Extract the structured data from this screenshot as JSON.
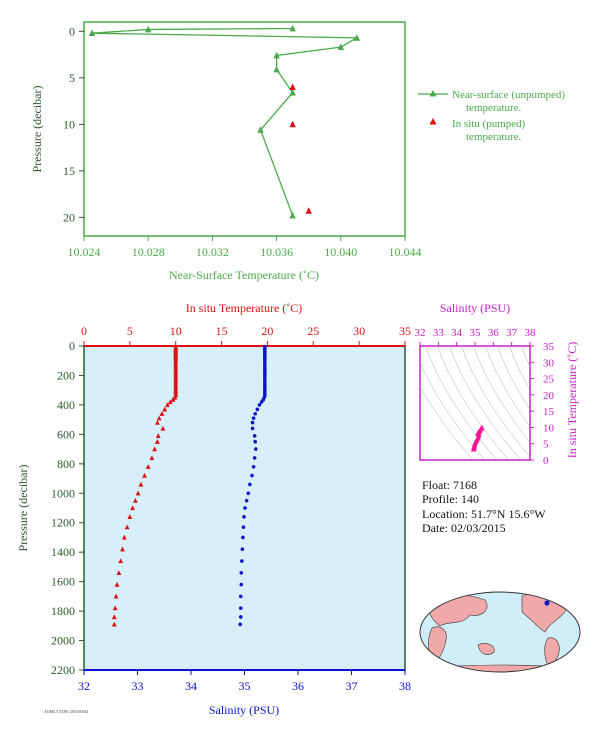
{
  "colors": {
    "green": "#4aaa4a",
    "red": "#dd1111",
    "blue": "#0a16c8",
    "magenta": "#c81ec8",
    "axis_dark": "#2b5a2b",
    "panel_bg": "#d6effa",
    "map_ocean": "#cfeefa",
    "map_land": "#f0a8a8"
  },
  "float_info": {
    "float": "Float:  7168",
    "profile": "Profile:  140",
    "location": "Location:  51.7°N  15.6°W",
    "date": "Date:  02/03/2015"
  },
  "footer_code": "AOML/CTD01 2015/03/02",
  "chart_data": [
    {
      "id": "near_surface",
      "type": "line",
      "xlabel": "Near-Surface Temperature (˚C)",
      "ylabel": "Pressure (decibar)",
      "xlim": [
        10.024,
        10.044
      ],
      "ylim": [
        22,
        -1
      ],
      "xticks": [
        "10.024",
        "10.028",
        "10.032",
        "10.036",
        "10.040",
        "10.044"
      ],
      "yticks": [
        "0",
        "5",
        "10",
        "15",
        "20"
      ],
      "series": [
        {
          "name": "Near-surface (unpumped) temperature.",
          "style": "line-triangle",
          "points": [
            [
              10.037,
              -0.3
            ],
            [
              10.028,
              -0.2
            ],
            [
              10.0245,
              0.2
            ],
            [
              10.041,
              0.7
            ],
            [
              10.04,
              1.7
            ],
            [
              10.036,
              2.6
            ],
            [
              10.036,
              4.1
            ],
            [
              10.037,
              6.6
            ],
            [
              10.035,
              10.6
            ],
            [
              10.037,
              19.8
            ]
          ]
        },
        {
          "name": "In situ (pumped) temperature.",
          "style": "triangle",
          "points": [
            [
              10.037,
              6.0
            ],
            [
              10.037,
              10.0
            ],
            [
              10.038,
              19.3
            ]
          ]
        }
      ]
    },
    {
      "id": "profile",
      "type": "scatter",
      "ylabel": "Pressure (decibar)",
      "ylim": [
        2200,
        0
      ],
      "yticks": [
        "0",
        "200",
        "400",
        "600",
        "800",
        "1000",
        "1200",
        "1400",
        "1600",
        "1800",
        "2000",
        "2200"
      ],
      "top_axis": {
        "label": "In situ Temperature (˚C)",
        "lim": [
          0,
          35
        ],
        "ticks": [
          "0",
          "5",
          "10",
          "15",
          "20",
          "25",
          "30",
          "35"
        ]
      },
      "bottom_axis": {
        "label": "Salinity (PSU)",
        "lim": [
          32,
          38
        ],
        "ticks": [
          "32",
          "33",
          "34",
          "35",
          "36",
          "37",
          "38"
        ]
      },
      "temperature": [
        [
          10.0,
          5
        ],
        [
          10.0,
          15
        ],
        [
          10.0,
          25
        ],
        [
          10.0,
          35
        ],
        [
          10.0,
          45
        ],
        [
          10.0,
          55
        ],
        [
          10.0,
          65
        ],
        [
          10.0,
          75
        ],
        [
          10.0,
          85
        ],
        [
          10.0,
          95
        ],
        [
          10.0,
          110
        ],
        [
          10.0,
          125
        ],
        [
          10.0,
          140
        ],
        [
          10.0,
          155
        ],
        [
          10.0,
          170
        ],
        [
          10.0,
          185
        ],
        [
          10.0,
          200
        ],
        [
          10.0,
          215
        ],
        [
          10.0,
          230
        ],
        [
          10.0,
          245
        ],
        [
          10.0,
          260
        ],
        [
          10.0,
          275
        ],
        [
          10.0,
          290
        ],
        [
          10.0,
          305
        ],
        [
          10.0,
          320
        ],
        [
          10.0,
          335
        ],
        [
          9.9,
          350
        ],
        [
          9.7,
          365
        ],
        [
          9.4,
          380
        ],
        [
          9.1,
          400
        ],
        [
          8.8,
          430
        ],
        [
          8.5,
          460
        ],
        [
          8.2,
          490
        ],
        [
          8.0,
          520
        ],
        [
          8.6,
          560
        ],
        [
          8.1,
          610
        ],
        [
          8.0,
          650
        ],
        [
          7.7,
          700
        ],
        [
          7.4,
          760
        ],
        [
          7.0,
          820
        ],
        [
          6.6,
          880
        ],
        [
          6.2,
          940
        ],
        [
          5.9,
          1000
        ],
        [
          5.6,
          1050
        ],
        [
          5.3,
          1100
        ],
        [
          5.0,
          1160
        ],
        [
          4.7,
          1230
        ],
        [
          4.4,
          1300
        ],
        [
          4.2,
          1380
        ],
        [
          4.0,
          1460
        ],
        [
          3.8,
          1540
        ],
        [
          3.6,
          1620
        ],
        [
          3.5,
          1700
        ],
        [
          3.4,
          1780
        ],
        [
          3.3,
          1840
        ],
        [
          3.3,
          1890
        ]
      ],
      "salinity": [
        [
          35.38,
          5
        ],
        [
          35.38,
          15
        ],
        [
          35.38,
          25
        ],
        [
          35.38,
          35
        ],
        [
          35.38,
          45
        ],
        [
          35.38,
          55
        ],
        [
          35.38,
          65
        ],
        [
          35.38,
          75
        ],
        [
          35.38,
          85
        ],
        [
          35.38,
          95
        ],
        [
          35.38,
          110
        ],
        [
          35.38,
          125
        ],
        [
          35.38,
          140
        ],
        [
          35.38,
          155
        ],
        [
          35.38,
          170
        ],
        [
          35.38,
          185
        ],
        [
          35.38,
          200
        ],
        [
          35.38,
          215
        ],
        [
          35.38,
          230
        ],
        [
          35.38,
          245
        ],
        [
          35.38,
          260
        ],
        [
          35.38,
          275
        ],
        [
          35.38,
          290
        ],
        [
          35.38,
          305
        ],
        [
          35.38,
          320
        ],
        [
          35.38,
          335
        ],
        [
          35.37,
          350
        ],
        [
          35.35,
          365
        ],
        [
          35.32,
          380
        ],
        [
          35.28,
          400
        ],
        [
          35.24,
          430
        ],
        [
          35.2,
          460
        ],
        [
          35.17,
          490
        ],
        [
          35.15,
          520
        ],
        [
          35.15,
          560
        ],
        [
          35.19,
          610
        ],
        [
          35.2,
          650
        ],
        [
          35.21,
          700
        ],
        [
          35.19,
          760
        ],
        [
          35.17,
          820
        ],
        [
          35.14,
          880
        ],
        [
          35.1,
          940
        ],
        [
          35.07,
          1000
        ],
        [
          35.04,
          1050
        ],
        [
          35.01,
          1100
        ],
        [
          34.99,
          1160
        ],
        [
          34.98,
          1230
        ],
        [
          34.97,
          1300
        ],
        [
          34.96,
          1380
        ],
        [
          34.95,
          1460
        ],
        [
          34.94,
          1540
        ],
        [
          34.94,
          1620
        ],
        [
          34.93,
          1700
        ],
        [
          34.93,
          1780
        ],
        [
          34.93,
          1840
        ],
        [
          34.92,
          1890
        ]
      ]
    },
    {
      "id": "ts_diagram",
      "type": "scatter",
      "top_axis": {
        "label": "Salinity (PSU)",
        "lim": [
          32,
          38
        ],
        "ticks": [
          "32",
          "33",
          "34",
          "35",
          "36",
          "37",
          "38"
        ]
      },
      "right_axis": {
        "label": "In situ Temperature (˚C)",
        "lim": [
          0,
          35
        ],
        "ticks": [
          "0",
          "5",
          "10",
          "15",
          "20",
          "25",
          "30",
          "35"
        ]
      },
      "points": [
        [
          35.38,
          10.0
        ],
        [
          35.36,
          9.8
        ],
        [
          35.32,
          9.5
        ],
        [
          35.28,
          9.1
        ],
        [
          35.24,
          8.8
        ],
        [
          35.2,
          8.5
        ],
        [
          35.17,
          8.2
        ],
        [
          35.15,
          8.0
        ],
        [
          35.19,
          8.6
        ],
        [
          35.2,
          8.1
        ],
        [
          35.21,
          7.7
        ],
        [
          35.19,
          7.4
        ],
        [
          35.17,
          7.0
        ],
        [
          35.14,
          6.6
        ],
        [
          35.1,
          6.2
        ],
        [
          35.07,
          5.9
        ],
        [
          35.04,
          5.6
        ],
        [
          35.01,
          5.3
        ],
        [
          34.99,
          5.0
        ],
        [
          34.98,
          4.7
        ],
        [
          34.97,
          4.4
        ],
        [
          34.96,
          4.2
        ],
        [
          34.95,
          4.0
        ],
        [
          34.94,
          3.8
        ],
        [
          34.93,
          3.6
        ],
        [
          34.93,
          3.4
        ],
        [
          34.92,
          3.3
        ]
      ]
    }
  ]
}
